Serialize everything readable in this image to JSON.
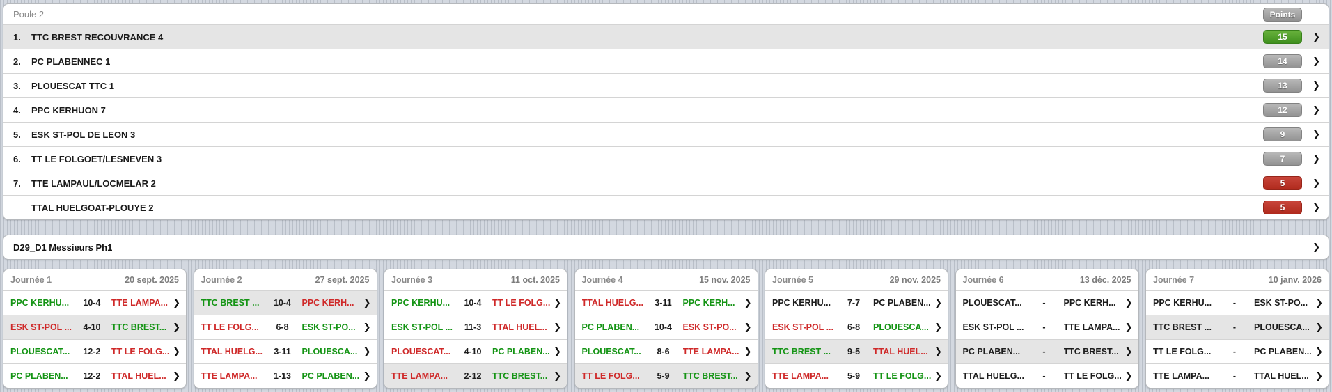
{
  "colors": {
    "win": "#149414",
    "loss": "#cf2929",
    "neutral": "#1c1c1c",
    "muted": "#8a8a8a",
    "row_highlight": "#e5e5e5",
    "badge_green_top": "#68b23c",
    "badge_green_bottom": "#3f8f1e",
    "badge_gray_top": "#b8b8b8",
    "badge_gray_bottom": "#929292",
    "badge_red_top": "#c8453a",
    "badge_red_bottom": "#b02a1d",
    "page_stripe_light": "#d3d8e0",
    "page_stripe_dark": "#b9bfc8"
  },
  "icons": {
    "chevron_right": "❯"
  },
  "standings": {
    "title": "Poule 2",
    "points_label": "Points",
    "rows": [
      {
        "rank": "1.",
        "team": "TTC BREST RECOUVRANCE 4",
        "points": "15",
        "badge_tone": "green",
        "selected": "true"
      },
      {
        "rank": "2.",
        "team": "PC PLABENNEC 1",
        "points": "14",
        "badge_tone": "gray",
        "selected": "false"
      },
      {
        "rank": "3.",
        "team": "PLOUESCAT TTC 1",
        "points": "13",
        "badge_tone": "gray",
        "selected": "false"
      },
      {
        "rank": "4.",
        "team": "PPC KERHUON 7",
        "points": "12",
        "badge_tone": "gray",
        "selected": "false"
      },
      {
        "rank": "5.",
        "team": "ESK ST-POL DE LEON 3",
        "points": "9",
        "badge_tone": "gray",
        "selected": "false"
      },
      {
        "rank": "6.",
        "team": "TT LE FOLGOET/LESNEVEN 3",
        "points": "7",
        "badge_tone": "gray",
        "selected": "false"
      },
      {
        "rank": "7.",
        "team": "TTE LAMPAUL/LOCMELAR 2",
        "points": "5",
        "badge_tone": "red",
        "selected": "false"
      },
      {
        "rank": "",
        "team": "TTAL HUELGOAT-PLOUYE 2",
        "points": "5",
        "badge_tone": "red",
        "selected": "false"
      }
    ]
  },
  "division": {
    "label": "D29_D1 Messieurs Ph1"
  },
  "journees": [
    {
      "title": "Journée 1",
      "date": "20 sept. 2025",
      "matches": [
        {
          "home": "PPC KERHU...",
          "score": "10-4",
          "away": "TTE LAMPA...",
          "home_res": "win",
          "away_res": "loss",
          "selected": "false"
        },
        {
          "home": "ESK ST-POL ...",
          "score": "4-10",
          "away": "TTC BREST...",
          "home_res": "loss",
          "away_res": "win",
          "selected": "true"
        },
        {
          "home": "PLOUESCAT...",
          "score": "12-2",
          "away": "TT LE FOLG...",
          "home_res": "win",
          "away_res": "loss",
          "selected": "false"
        },
        {
          "home": "PC PLABEN...",
          "score": "12-2",
          "away": "TTAL HUEL...",
          "home_res": "win",
          "away_res": "loss",
          "selected": "false"
        }
      ]
    },
    {
      "title": "Journée 2",
      "date": "27 sept. 2025",
      "matches": [
        {
          "home": "TTC BREST ...",
          "score": "10-4",
          "away": "PPC KERH...",
          "home_res": "win",
          "away_res": "loss",
          "selected": "true"
        },
        {
          "home": "TT LE FOLG...",
          "score": "6-8",
          "away": "ESK ST-PO...",
          "home_res": "loss",
          "away_res": "win",
          "selected": "false"
        },
        {
          "home": "TTAL HUELG...",
          "score": "3-11",
          "away": "PLOUESCA...",
          "home_res": "loss",
          "away_res": "win",
          "selected": "false"
        },
        {
          "home": "TTE LAMPA...",
          "score": "1-13",
          "away": "PC PLABEN...",
          "home_res": "loss",
          "away_res": "win",
          "selected": "false"
        }
      ]
    },
    {
      "title": "Journée 3",
      "date": "11 oct. 2025",
      "matches": [
        {
          "home": "PPC KERHU...",
          "score": "10-4",
          "away": "TT LE FOLG...",
          "home_res": "win",
          "away_res": "loss",
          "selected": "false"
        },
        {
          "home": "ESK ST-POL ...",
          "score": "11-3",
          "away": "TTAL HUEL...",
          "home_res": "win",
          "away_res": "loss",
          "selected": "false"
        },
        {
          "home": "PLOUESCAT...",
          "score": "4-10",
          "away": "PC PLABEN...",
          "home_res": "loss",
          "away_res": "win",
          "selected": "false"
        },
        {
          "home": "TTE LAMPA...",
          "score": "2-12",
          "away": "TTC BREST...",
          "home_res": "loss",
          "away_res": "win",
          "selected": "true"
        }
      ]
    },
    {
      "title": "Journée 4",
      "date": "15 nov. 2025",
      "matches": [
        {
          "home": "TTAL HUELG...",
          "score": "3-11",
          "away": "PPC KERH...",
          "home_res": "loss",
          "away_res": "win",
          "selected": "false"
        },
        {
          "home": "PC PLABEN...",
          "score": "10-4",
          "away": "ESK ST-PO...",
          "home_res": "win",
          "away_res": "loss",
          "selected": "false"
        },
        {
          "home": "PLOUESCAT...",
          "score": "8-6",
          "away": "TTE LAMPA...",
          "home_res": "win",
          "away_res": "loss",
          "selected": "false"
        },
        {
          "home": "TT LE FOLG...",
          "score": "5-9",
          "away": "TTC BREST...",
          "home_res": "loss",
          "away_res": "win",
          "selected": "true"
        }
      ]
    },
    {
      "title": "Journée 5",
      "date": "29 nov. 2025",
      "matches": [
        {
          "home": "PPC KERHU...",
          "score": "7-7",
          "away": "PC PLABEN...",
          "home_res": "draw",
          "away_res": "draw",
          "selected": "false"
        },
        {
          "home": "ESK ST-POL ...",
          "score": "6-8",
          "away": "PLOUESCA...",
          "home_res": "loss",
          "away_res": "win",
          "selected": "false"
        },
        {
          "home": "TTC BREST ...",
          "score": "9-5",
          "away": "TTAL HUEL...",
          "home_res": "win",
          "away_res": "loss",
          "selected": "true"
        },
        {
          "home": "TTE LAMPA...",
          "score": "5-9",
          "away": "TT LE FOLG...",
          "home_res": "loss",
          "away_res": "win",
          "selected": "false"
        }
      ]
    },
    {
      "title": "Journée 6",
      "date": "13 déc. 2025",
      "matches": [
        {
          "home": "PLOUESCAT...",
          "score": "-",
          "away": "PPC KERH...",
          "home_res": "pending",
          "away_res": "pending",
          "selected": "false"
        },
        {
          "home": "ESK ST-POL ...",
          "score": "-",
          "away": "TTE LAMPA...",
          "home_res": "pending",
          "away_res": "pending",
          "selected": "false"
        },
        {
          "home": "PC PLABEN...",
          "score": "-",
          "away": "TTC BREST...",
          "home_res": "pending",
          "away_res": "pending",
          "selected": "true"
        },
        {
          "home": "TTAL HUELG...",
          "score": "-",
          "away": "TT LE FOLG...",
          "home_res": "pending",
          "away_res": "pending",
          "selected": "false"
        }
      ]
    },
    {
      "title": "Journée 7",
      "date": "10 janv. 2026",
      "matches": [
        {
          "home": "PPC KERHU...",
          "score": "-",
          "away": "ESK ST-PO...",
          "home_res": "pending",
          "away_res": "pending",
          "selected": "false"
        },
        {
          "home": "TTC BREST ...",
          "score": "-",
          "away": "PLOUESCA...",
          "home_res": "pending",
          "away_res": "pending",
          "selected": "true"
        },
        {
          "home": "TT LE FOLG...",
          "score": "-",
          "away": "PC PLABEN...",
          "home_res": "pending",
          "away_res": "pending",
          "selected": "false"
        },
        {
          "home": "TTE LAMPA...",
          "score": "-",
          "away": "TTAL HUEL...",
          "home_res": "pending",
          "away_res": "pending",
          "selected": "false"
        }
      ]
    }
  ]
}
